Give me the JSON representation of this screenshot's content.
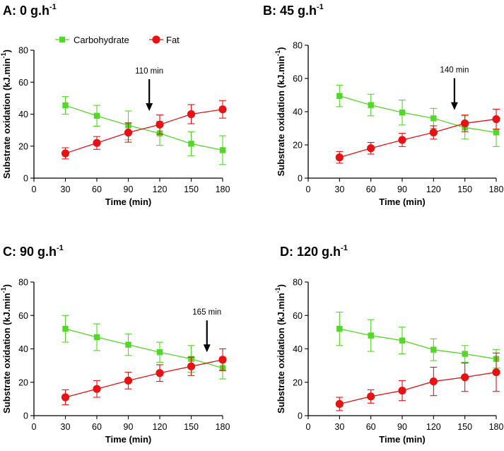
{
  "colors": {
    "carbohydrate": "#52d826",
    "fat": "#e81212"
  },
  "legend": {
    "placement": "top",
    "entries": [
      {
        "name": "Carbohydrate",
        "marker": "square",
        "color": "#52d826"
      },
      {
        "name": "Fat",
        "marker": "circle",
        "color": "#e81212"
      }
    ]
  },
  "chart_data": [
    {
      "type": "line",
      "panel_label": "A: 0 g.h",
      "panel_label_sup": "-1",
      "xlabel": "Time (min)",
      "ylabel": "Substrate oxidation (kJ.min",
      "ylabel_sup": "-1",
      "ylabel_end": ")",
      "xlim": [
        0,
        180
      ],
      "ylim": [
        0,
        80
      ],
      "xticks": [
        0,
        30,
        60,
        90,
        120,
        150,
        180
      ],
      "yticks": [
        0,
        20,
        40,
        60,
        80
      ],
      "x": [
        30,
        60,
        90,
        120,
        150,
        180
      ],
      "series": [
        {
          "name": "Carbohydrate",
          "values": [
            45.5,
            39,
            33,
            28,
            21.5,
            17.5
          ],
          "error": [
            5.5,
            6.5,
            9,
            7.5,
            7.5,
            9
          ]
        },
        {
          "name": "Fat",
          "values": [
            15.5,
            22,
            28.5,
            33.5,
            40,
            43
          ],
          "error": [
            3.5,
            4,
            6,
            6,
            6,
            5.5
          ]
        }
      ],
      "annotation": {
        "text": "110 min",
        "x": 110,
        "arrow_tip_y": 42
      }
    },
    {
      "type": "line",
      "panel_label": "B: 45 g.h",
      "panel_label_sup": "-1",
      "xlabel": "Time (min)",
      "ylabel": "Substrate oxidation (kJ.min",
      "ylabel_sup": "-1",
      "ylabel_end": ")",
      "xlim": [
        0,
        180
      ],
      "ylim": [
        0,
        80
      ],
      "xticks": [
        0,
        30,
        60,
        90,
        120,
        150,
        180
      ],
      "yticks": [
        0,
        20,
        40,
        60,
        80
      ],
      "x": [
        30,
        60,
        90,
        120,
        150,
        180
      ],
      "series": [
        {
          "name": "Carbohydrate",
          "values": [
            49.5,
            44,
            39.5,
            36,
            30.5,
            27.5
          ],
          "error": [
            6.5,
            6.5,
            7.5,
            6,
            7,
            8.5
          ]
        },
        {
          "name": "Fat",
          "values": [
            12.5,
            18,
            23,
            27.5,
            33,
            35.5
          ],
          "error": [
            3.5,
            3.5,
            4,
            4,
            5,
            6
          ]
        }
      ],
      "annotation": {
        "text": "140 min",
        "x": 140,
        "arrow_tip_y": 41
      }
    },
    {
      "type": "line",
      "panel_label": "C: 90 g.h",
      "panel_label_sup": "-1",
      "xlabel": "Time (min)",
      "ylabel": "Substrate oxidation (kJ.min",
      "ylabel_sup": "-1",
      "ylabel_end": ")",
      "xlim": [
        0,
        180
      ],
      "ylim": [
        0,
        80
      ],
      "xticks": [
        0,
        30,
        60,
        90,
        120,
        150,
        180
      ],
      "yticks": [
        0,
        20,
        40,
        60,
        80
      ],
      "x": [
        30,
        60,
        90,
        120,
        150,
        180
      ],
      "series": [
        {
          "name": "Carbohydrate",
          "values": [
            52,
            47,
            42.5,
            38,
            34,
            28.5
          ],
          "error": [
            8,
            8,
            6.5,
            6,
            8,
            6.5
          ]
        },
        {
          "name": "Fat",
          "values": [
            11,
            16,
            21,
            25.5,
            29.5,
            33.5
          ],
          "error": [
            4.5,
            5,
            5,
            5,
            5.5,
            6.5
          ]
        }
      ],
      "annotation": {
        "text": "165 min",
        "x": 165,
        "arrow_tip_y": 38
      }
    },
    {
      "type": "line",
      "panel_label": "D: 120 g.h",
      "panel_label_sup": "-1",
      "xlabel": "Time (min)",
      "ylabel": "Substrate oxidation (kJ.min",
      "ylabel_sup": "-1",
      "ylabel_end": ")",
      "xlim": [
        0,
        180
      ],
      "ylim": [
        0,
        80
      ],
      "xticks": [
        0,
        30,
        60,
        90,
        120,
        150,
        180
      ],
      "yticks": [
        0,
        20,
        40,
        60,
        80
      ],
      "x": [
        30,
        60,
        90,
        120,
        150,
        180
      ],
      "series": [
        {
          "name": "Carbohydrate",
          "values": [
            52,
            48,
            45,
            39.5,
            37,
            34
          ],
          "error": [
            10,
            9.5,
            8,
            6.5,
            5,
            5.5
          ]
        },
        {
          "name": "Fat",
          "values": [
            7,
            11.5,
            15,
            20.5,
            23,
            26
          ],
          "error": [
            4,
            4,
            6,
            8.5,
            8.5,
            11.5
          ]
        }
      ]
    }
  ]
}
